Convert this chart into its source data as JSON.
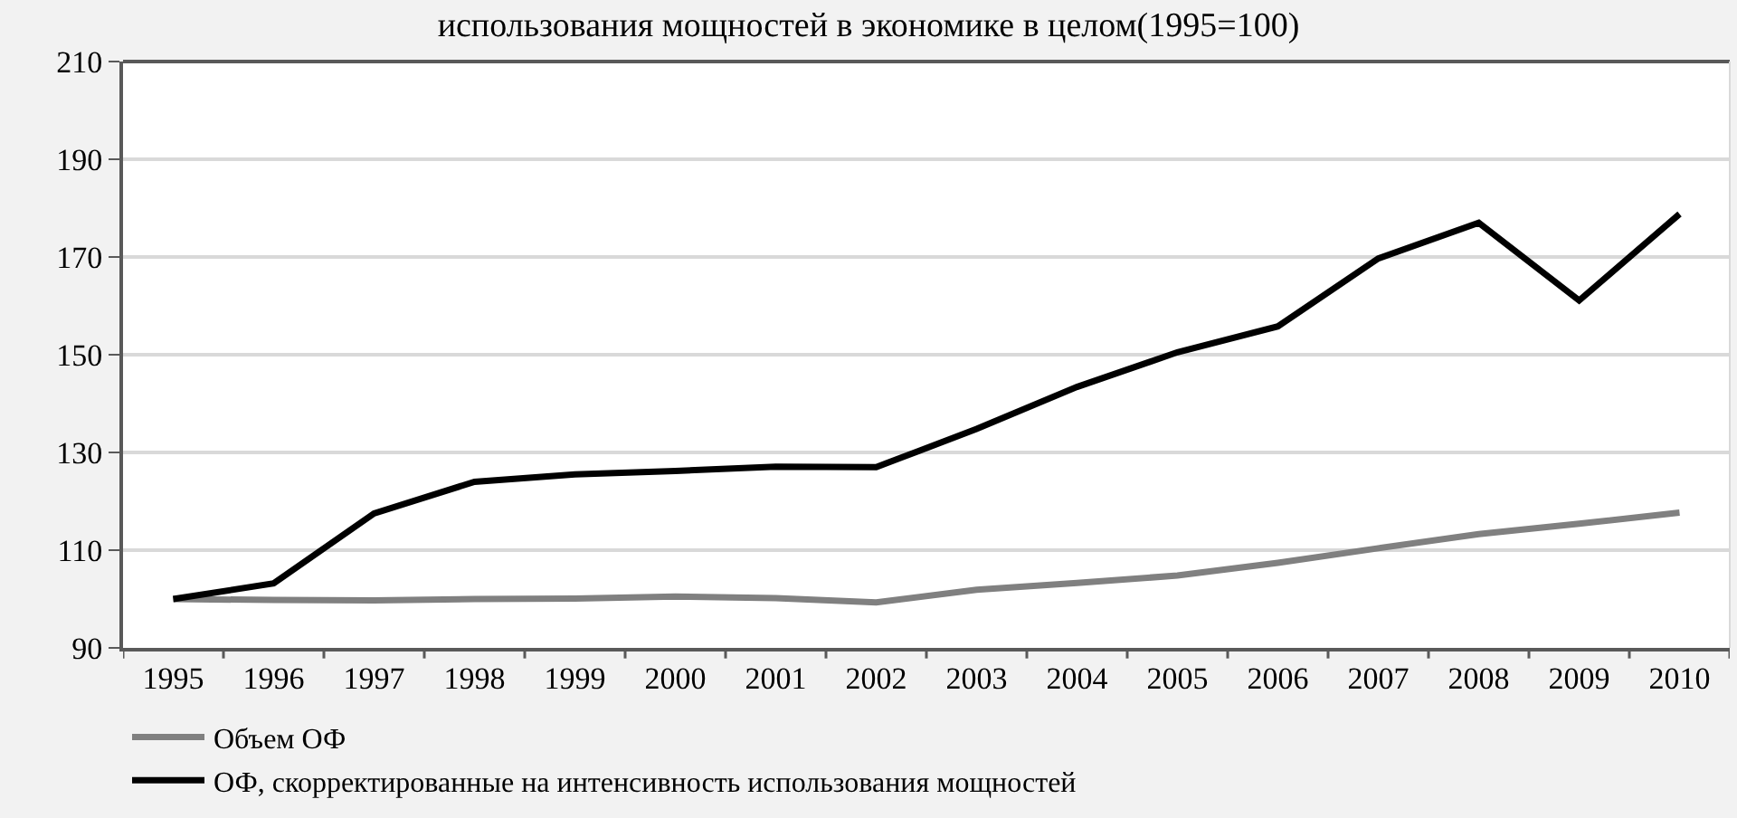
{
  "chart_data": {
    "type": "line",
    "title": "использования мощностей в экономике в целом(1995=100)",
    "categories": [
      "1995",
      "1996",
      "1997",
      "1998",
      "1999",
      "2000",
      "2001",
      "2002",
      "2003",
      "2004",
      "2005",
      "2006",
      "2007",
      "2008",
      "2009",
      "2010"
    ],
    "series": [
      {
        "name": "Объем ОФ",
        "color": "#808080",
        "values": [
          100,
          99.8,
          99.7,
          100,
          100.1,
          100.5,
          100.2,
          99.3,
          101.9,
          103.3,
          104.8,
          107.4,
          110.4,
          113.3,
          115.4,
          117.7
        ]
      },
      {
        "name": "ОФ, скорректированные на интенсивность использования мощностей",
        "color": "#000000",
        "values": [
          100,
          103.2,
          117.5,
          124,
          125.5,
          126.2,
          127.1,
          127,
          134.8,
          143.4,
          150.5,
          155.8,
          169.7,
          177,
          161.1,
          178.8
        ]
      }
    ],
    "ylim": [
      90,
      210
    ],
    "yticks": [
      90,
      110,
      130,
      150,
      170,
      190,
      210
    ],
    "grid": "y",
    "legend": "bottom",
    "marker": "none",
    "line_style": "solid"
  }
}
